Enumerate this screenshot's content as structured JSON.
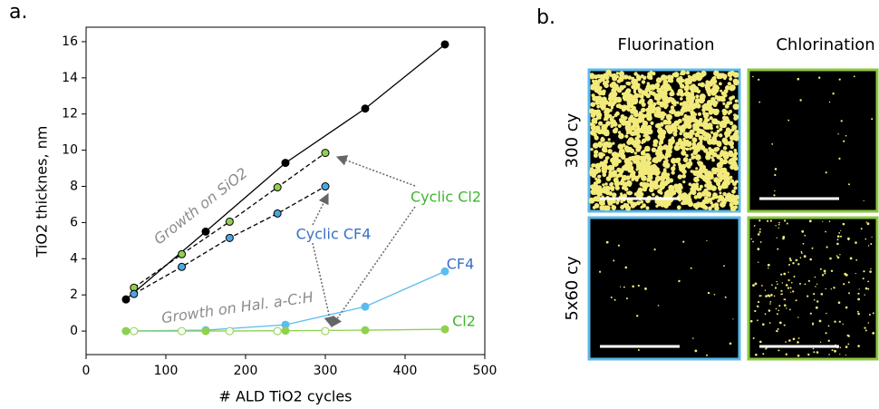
{
  "chart_data": {
    "type": "line",
    "panel_label": "a.",
    "x_label": "# ALD TiO2 cycles",
    "y_label": "TiO2 thicknes, nm",
    "xlim": [
      0,
      500
    ],
    "xticks": [
      0,
      100,
      200,
      300,
      400,
      500
    ],
    "ylim": [
      -1.3,
      16.8
    ],
    "yticks": [
      0,
      2,
      4,
      6,
      8,
      10,
      12,
      14,
      16
    ],
    "series": [
      {
        "name": "Growth on SiO2",
        "color": "#000000",
        "line_style": "solid",
        "marker_fill": "#000000",
        "marker_edge": "#000000",
        "label_color": "#8c8c8c",
        "x": [
          50,
          150,
          250,
          350,
          450
        ],
        "values": [
          1.75,
          5.5,
          9.3,
          12.3,
          15.85
        ]
      },
      {
        "name": "Cyclic Cl2",
        "color": "#000000",
        "line_style": "dashed",
        "marker_fill": "#8fd14f",
        "marker_edge": "#000000",
        "label_color": "#3db52e",
        "x": [
          60,
          120,
          180,
          240,
          300
        ],
        "values": [
          2.4,
          4.25,
          6.05,
          7.95,
          9.85
        ]
      },
      {
        "name": "Cyclic CF4",
        "color": "#000000",
        "line_style": "dashed",
        "marker_fill": "#4ea6e0",
        "marker_edge": "#000000",
        "label_color": "#3a6fc4",
        "x": [
          60,
          120,
          180,
          240,
          300
        ],
        "values": [
          2.05,
          3.55,
          5.15,
          6.5,
          8.0
        ]
      },
      {
        "name": "CF4",
        "color": "#5bbcf0",
        "line_style": "solid",
        "marker_fill": "#5bbcf0",
        "marker_edge": "#5bbcf0",
        "label_color": "#3a6fc4",
        "x": [
          50,
          150,
          250,
          350,
          450
        ],
        "values": [
          0,
          0.05,
          0.35,
          1.35,
          3.3
        ]
      },
      {
        "name": "Cl2",
        "color": "#8fd14f",
        "line_style": "solid",
        "marker_fill": "#8fd14f",
        "marker_edge": "#8fd14f",
        "label_color": "#3db52e",
        "x": [
          50,
          150,
          250,
          350,
          450
        ],
        "values": [
          0,
          0,
          0.02,
          0.05,
          0.1
        ]
      },
      {
        "name": "Growth on Hal. a-C:H",
        "color": "#8fd14f",
        "line_style": "none",
        "marker_fill": "#ffffff",
        "marker_edge": "#8fd14f",
        "label_color": "#8c8c8c",
        "x": [
          60,
          120,
          180,
          240,
          300
        ],
        "values": [
          0,
          0,
          0,
          0,
          0
        ]
      }
    ]
  },
  "micrographs": {
    "panel_label": "b.",
    "columns": [
      "Fluorination",
      "Chlorination"
    ],
    "rows": [
      "300 cy",
      "5x60 cy"
    ]
  }
}
